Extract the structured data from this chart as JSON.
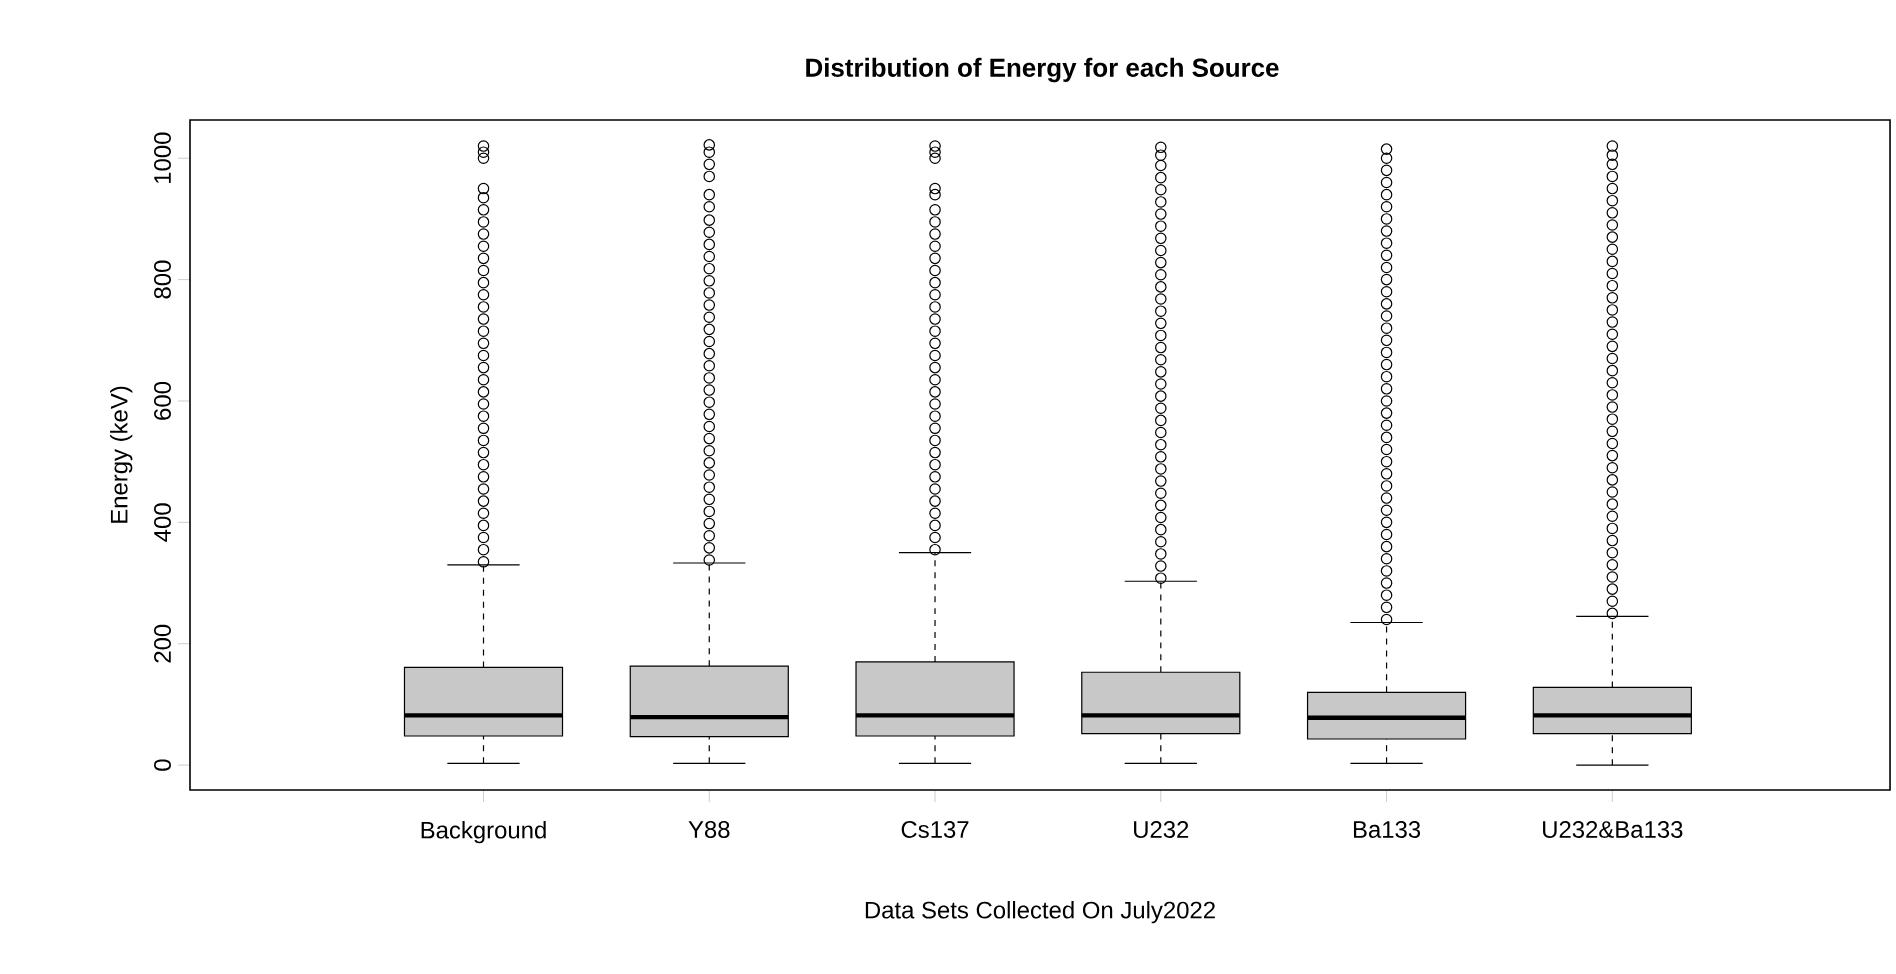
{
  "chart_data": {
    "type": "box",
    "title": "Distribution of Energy for each Source",
    "xlabel": "Data Sets Collected On July2022",
    "ylabel": "Energy (keV)",
    "categories": [
      "Background",
      "Y88",
      "Cs137",
      "U232",
      "Ba133",
      "U232&Ba133"
    ],
    "color": "#c8c8c8",
    "marker": "circle",
    "ylim": [
      -41,
      1063
    ],
    "yticks": [
      0,
      200,
      400,
      600,
      800,
      1000
    ],
    "boxes": [
      {
        "low": 3,
        "q1": 48,
        "median": 82,
        "q3": 161,
        "high": 330,
        "outliers": [
          335,
          355,
          375,
          395,
          415,
          435,
          455,
          475,
          495,
          515,
          535,
          555,
          575,
          595,
          615,
          635,
          655,
          675,
          695,
          715,
          735,
          755,
          775,
          795,
          815,
          835,
          855,
          875,
          895,
          915,
          935,
          950,
          1000,
          1010,
          1020
        ]
      },
      {
        "low": 3,
        "q1": 47,
        "median": 79,
        "q3": 163,
        "high": 333,
        "outliers": [
          338,
          358,
          378,
          398,
          418,
          438,
          458,
          478,
          498,
          518,
          538,
          558,
          578,
          598,
          618,
          638,
          658,
          678,
          698,
          718,
          738,
          758,
          778,
          798,
          818,
          838,
          858,
          878,
          898,
          920,
          940,
          970,
          990,
          1010,
          1022
        ]
      },
      {
        "low": 3,
        "q1": 48,
        "median": 82,
        "q3": 170,
        "high": 350,
        "outliers": [
          355,
          375,
          395,
          415,
          435,
          455,
          475,
          495,
          515,
          535,
          555,
          575,
          595,
          615,
          635,
          655,
          675,
          695,
          715,
          735,
          755,
          775,
          795,
          815,
          835,
          855,
          875,
          895,
          915,
          940,
          950,
          1000,
          1010,
          1020
        ]
      },
      {
        "low": 3,
        "q1": 52,
        "median": 82,
        "q3": 153,
        "high": 303,
        "outliers": [
          308,
          328,
          348,
          368,
          388,
          408,
          428,
          448,
          468,
          488,
          508,
          528,
          548,
          568,
          588,
          608,
          628,
          648,
          668,
          688,
          708,
          728,
          748,
          768,
          788,
          808,
          828,
          848,
          868,
          888,
          908,
          928,
          948,
          968,
          988,
          1005,
          1018
        ]
      },
      {
        "low": 3,
        "q1": 43,
        "median": 78,
        "q3": 120,
        "high": 235,
        "outliers": [
          240,
          260,
          280,
          300,
          320,
          340,
          360,
          380,
          400,
          420,
          440,
          460,
          480,
          500,
          520,
          540,
          560,
          580,
          600,
          620,
          640,
          660,
          680,
          700,
          720,
          740,
          760,
          780,
          800,
          820,
          840,
          860,
          880,
          900,
          920,
          940,
          960,
          980,
          1000,
          1015
        ]
      },
      {
        "low": 0,
        "q1": 52,
        "median": 82,
        "q3": 128,
        "high": 245,
        "outliers": [
          250,
          270,
          290,
          310,
          330,
          350,
          370,
          390,
          410,
          430,
          450,
          470,
          490,
          510,
          530,
          550,
          570,
          590,
          610,
          630,
          650,
          670,
          690,
          710,
          730,
          750,
          770,
          790,
          810,
          830,
          850,
          870,
          890,
          910,
          930,
          950,
          970,
          990,
          1005,
          1020
        ]
      }
    ]
  }
}
